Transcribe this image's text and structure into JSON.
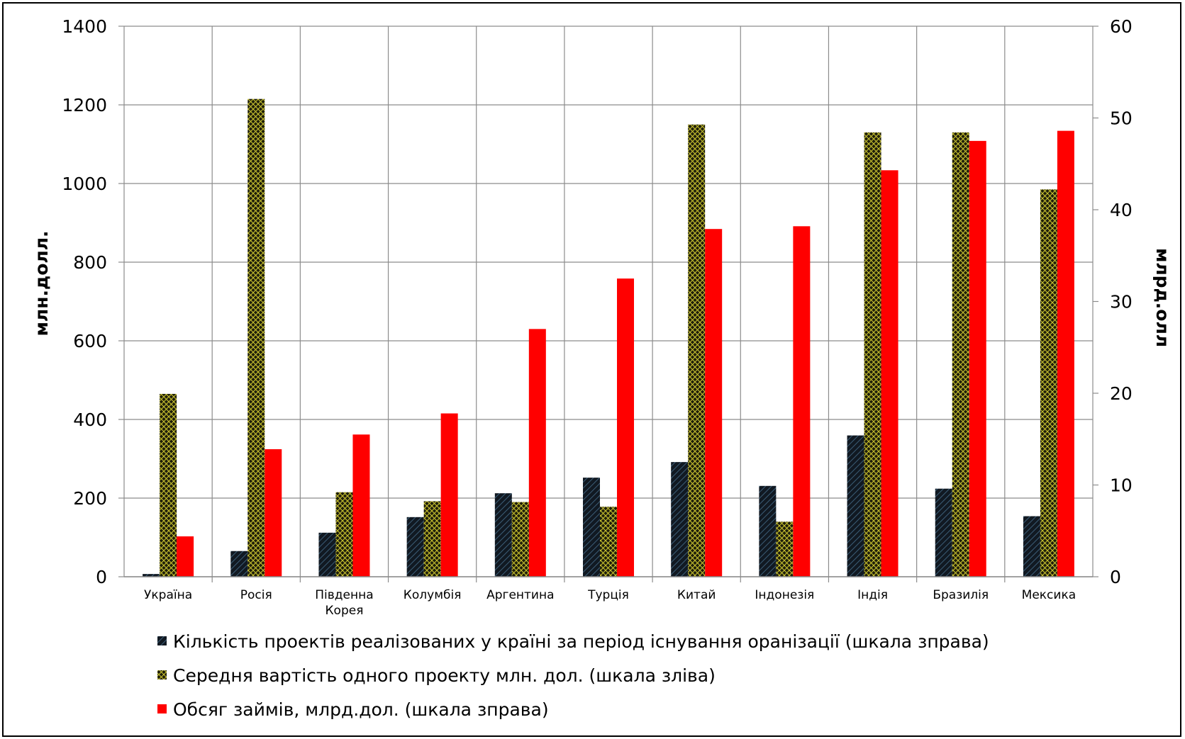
{
  "chart_data": {
    "type": "bar",
    "categories": [
      "Україна",
      "Росія",
      "Південна Корея",
      "Колумбія",
      "Аргентина",
      "Турція",
      "Китай",
      "Індонезія",
      "Індія",
      "Бразилія",
      "Мексика"
    ],
    "y_left": {
      "label": "млн.долл.",
      "range": [
        0,
        1400
      ],
      "ticks": [
        0,
        200,
        400,
        600,
        800,
        1000,
        1200,
        1400
      ]
    },
    "y_right": {
      "label": "млрд.олл",
      "range": [
        0,
        60
      ],
      "ticks": [
        0,
        10,
        20,
        30,
        40,
        50,
        60
      ]
    },
    "grid": true,
    "legend_position": "bottom",
    "series": [
      {
        "name": "Кількість проектів реалізованих у країні за період існування  оранізації (шкала зправа)",
        "axis": "right",
        "color": "#1b2a3b",
        "pattern": "diagonal",
        "values": [
          0.3,
          2.8,
          4.8,
          6.5,
          9.1,
          10.8,
          12.5,
          9.9,
          15.4,
          9.6,
          6.6
        ]
      },
      {
        "name": "Середня вартість одного проекту млн. дол. (шкала зліва)",
        "axis": "left",
        "color": "#2a2a12",
        "pattern": "crosshatch",
        "values": [
          465,
          1215,
          215,
          192,
          190,
          178,
          1150,
          140,
          1130,
          1130,
          985
        ]
      },
      {
        "name": "Обсяг займів, млрд.дол. (шкала зправа)",
        "axis": "right",
        "color": "#ff0000",
        "pattern": "solid",
        "values": [
          4.4,
          13.9,
          15.5,
          17.8,
          27.0,
          32.5,
          37.9,
          38.2,
          44.3,
          47.5,
          48.6
        ]
      }
    ]
  }
}
